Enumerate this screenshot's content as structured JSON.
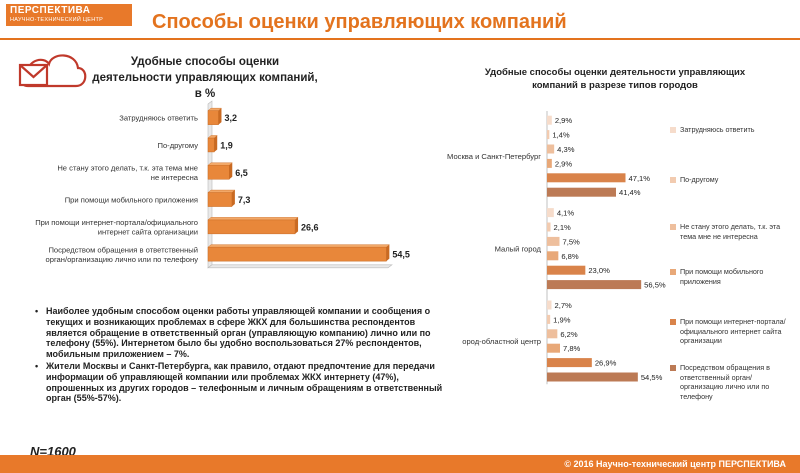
{
  "logo": {
    "line1": "ПЕРСПЕКТИВА",
    "line2": "НАУЧНО-ТЕХНИЧЕСКИЙ ЦЕНТР"
  },
  "title": "Способы оценки управляющих компаний",
  "colors": {
    "accent": "#e3731e",
    "bar_main": "#e8873a"
  },
  "chart_data": [
    {
      "type": "bar",
      "orientation": "horizontal",
      "title": "Удобные способы оценки деятельности управляющих компаний, в %",
      "categories": [
        "Затрудняюсь ответить",
        "По-другому",
        "Не стану этого делать, т.к. эта тема мне не интересна",
        "При помощи мобильного приложения",
        "При помощи интернет-портала/официального интернет сайта организации",
        "Посредством обращения в ответственный орган/организацию лично или по телефону"
      ],
      "values": [
        3.2,
        1.9,
        6.5,
        7.3,
        26.6,
        54.5
      ],
      "value_labels": [
        "3,2",
        "1,9",
        "6,5",
        "7,3",
        "26,6",
        "54,5"
      ],
      "xlim": [
        0,
        55
      ]
    },
    {
      "type": "bar",
      "orientation": "horizontal",
      "title": "Удобные способы оценки деятельности управляющих компаний в разрезе типов городов",
      "groups": [
        "Москва и Санкт-Петербург",
        "Малый город",
        "Город-областной центр"
      ],
      "group_labels_visible": [
        "Москва и Санкт-Петербург",
        "Малый город",
        "ород-областной центр"
      ],
      "series": [
        {
          "name": "Затрудняюсь ответить",
          "color": "#f6dccb",
          "values": [
            2.9,
            4.1,
            2.7
          ],
          "labels": [
            "2,9%",
            "4,1%",
            "2,7%"
          ]
        },
        {
          "name": "По-другому",
          "color": "#f2cbb0",
          "values": [
            1.4,
            2.1,
            1.9
          ],
          "labels": [
            "1,4%",
            "2,1%",
            "1,9%"
          ]
        },
        {
          "name": "Не стану этого делать, т.к. эта тема мне не интересна",
          "color": "#eebf9d",
          "values": [
            4.3,
            7.5,
            6.2
          ],
          "labels": [
            "4,3%",
            "7,5%",
            "6,2%"
          ]
        },
        {
          "name": "При помощи мобильного приложения",
          "color": "#e8a878",
          "values": [
            2.9,
            6.8,
            7.8
          ],
          "labels": [
            "2,9%",
            "6,8%",
            "7,8%"
          ]
        },
        {
          "name": "При помощи интернет-портала/официального интернет сайта организации",
          "color": "#d9834a",
          "values": [
            47.1,
            23.0,
            26.9
          ],
          "labels": [
            "47,1%",
            "23,0%",
            "26,9%"
          ]
        },
        {
          "name": "Посредством обращения в ответственный орган/организацию лично или по телефону",
          "color": "#bc7a55",
          "values": [
            41.4,
            56.5,
            54.5
          ],
          "labels": [
            "41,4%",
            "56,5%",
            "54,5%"
          ]
        }
      ],
      "xlim": [
        0,
        60
      ]
    }
  ],
  "bullets": [
    "Наиболее удобным способом оценки работы управляющей компании и сообщения о текущих и возникающих проблемах в сфере ЖКХ для большинства респондентов является обращение в ответственный орган (управляющую компанию) лично или по телефону (55%). Интернетом было бы удобно воспользоваться 27% респондентов, мобильным приложением – 7%.",
    "Жители Москвы и Санкт-Петербурга, как правило, отдают предпочтение для передачи информации об управляющей компании или проблемах ЖКХ интернету (47%), опрошенных из других городов – телефонным и личным обращениям в ответственный орган (55%-57%)."
  ],
  "n_note": "N=1600",
  "footer": "© 2016 Научно-технический центр ПЕРСПЕКТИВА"
}
